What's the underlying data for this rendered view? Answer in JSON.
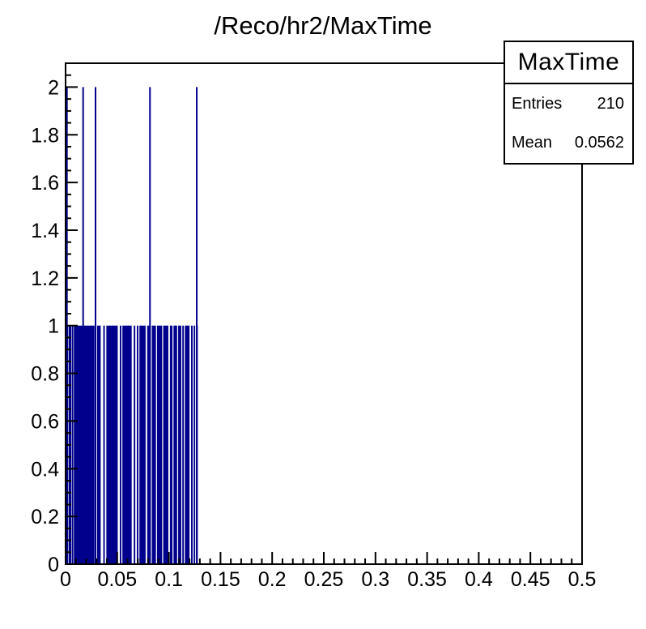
{
  "chart_data": {
    "type": "bar",
    "title": "/Reco/hr2/MaxTime",
    "xlabel": "",
    "ylabel": "",
    "xlim": [
      0,
      0.5
    ],
    "ylim": [
      0,
      2.1
    ],
    "grid": false,
    "legend_position": "none",
    "x_major_step": 0.05,
    "x_minor_step": 0.01,
    "y_major_step": 0.2,
    "y_minor_step": 0.05,
    "x_tick_labels": [
      "0",
      "0.05",
      "0.1",
      "0.15",
      "0.2",
      "0.25",
      "0.3",
      "0.35",
      "0.4",
      "0.45",
      "0.5"
    ],
    "y_tick_labels": [
      "0",
      "0.2",
      "0.4",
      "0.6",
      "0.8",
      "1",
      "1.2",
      "1.4",
      "1.6",
      "1.8",
      "2"
    ],
    "bar_color": "#00008c",
    "axis_color": "#000000",
    "bin_width": 0.001,
    "base_height": 1,
    "spike_height": 2,
    "bars_height1_intervals": [
      [
        0.0,
        0.0025
      ],
      [
        0.003,
        0.0055
      ],
      [
        0.006,
        0.0075
      ],
      [
        0.008,
        0.028
      ],
      [
        0.0285,
        0.0295
      ],
      [
        0.0305,
        0.034
      ],
      [
        0.0365,
        0.038
      ],
      [
        0.0395,
        0.0505
      ],
      [
        0.0525,
        0.054
      ],
      [
        0.055,
        0.064
      ],
      [
        0.066,
        0.0675
      ],
      [
        0.069,
        0.0705
      ],
      [
        0.0715,
        0.0775
      ],
      [
        0.079,
        0.0825
      ],
      [
        0.0835,
        0.0875
      ],
      [
        0.0885,
        0.0935
      ],
      [
        0.0945,
        0.0995
      ],
      [
        0.101,
        0.1035
      ],
      [
        0.1045,
        0.108
      ],
      [
        0.109,
        0.112
      ],
      [
        0.113,
        0.1145
      ],
      [
        0.1155,
        0.12
      ],
      [
        0.1215,
        0.123
      ],
      [
        0.124,
        0.1255
      ],
      [
        0.1265,
        0.128
      ]
    ],
    "spikes_height2_x": [
      0.0013,
      0.017,
      0.029,
      0.0817,
      0.127
    ]
  },
  "stats_box": {
    "title": "MaxTime",
    "rows": [
      {
        "label": "Entries",
        "value": "210"
      },
      {
        "label": "Mean",
        "value": "0.0562"
      }
    ]
  }
}
